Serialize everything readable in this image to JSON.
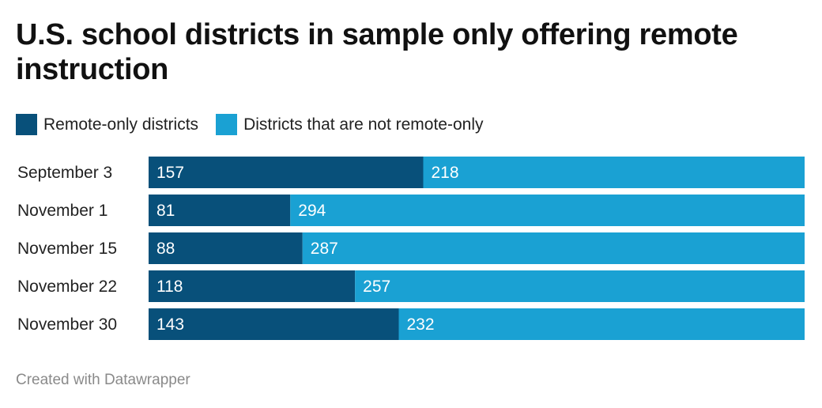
{
  "title": "U.S. school districts in sample only offering remote instruction",
  "footer": "Created with Datawrapper",
  "colors": {
    "remote": "#08507a",
    "not_remote": "#1aa1d3"
  },
  "chart_data": {
    "type": "bar",
    "orientation": "horizontal",
    "stacked": true,
    "title": "U.S. school districts in sample only offering remote instruction",
    "legend_position": "top-left",
    "categories": [
      "September 3",
      "November 1",
      "November 15",
      "November 22",
      "November 30"
    ],
    "series": [
      {
        "name": "Remote-only districts",
        "values": [
          157,
          81,
          88,
          118,
          143
        ]
      },
      {
        "name": "Districts that are not remote-only",
        "values": [
          218,
          294,
          287,
          257,
          232
        ]
      }
    ],
    "xlim": [
      0,
      375
    ]
  }
}
